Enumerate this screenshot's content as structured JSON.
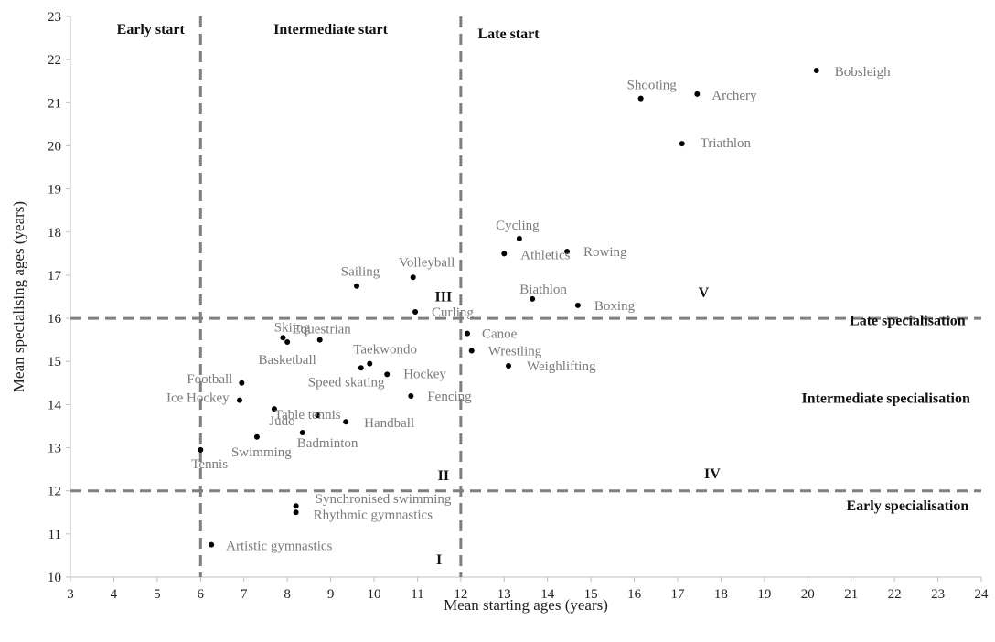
{
  "chart_data": {
    "type": "scatter",
    "xlabel": "Mean starting ages (years)",
    "ylabel": "Mean specialising ages (years)",
    "xlim": [
      3,
      24
    ],
    "ylim": [
      10,
      23
    ],
    "x_ticks": [
      3,
      4,
      5,
      6,
      7,
      8,
      9,
      10,
      11,
      12,
      13,
      14,
      15,
      16,
      17,
      18,
      19,
      20,
      21,
      22,
      23,
      24
    ],
    "y_ticks": [
      10,
      11,
      12,
      13,
      14,
      15,
      16,
      17,
      18,
      19,
      20,
      21,
      22,
      23
    ],
    "grid": false,
    "points": [
      {
        "label": "Bobsleigh",
        "x": 20.2,
        "y": 21.75
      },
      {
        "label": "Shooting",
        "x": 16.15,
        "y": 21.1
      },
      {
        "label": "Archery",
        "x": 17.45,
        "y": 21.2
      },
      {
        "label": "Triathlon",
        "x": 17.1,
        "y": 20.05
      },
      {
        "label": "Cycling",
        "x": 13.35,
        "y": 17.85
      },
      {
        "label": "Athletics",
        "x": 13.0,
        "y": 17.5
      },
      {
        "label": "Rowing",
        "x": 14.45,
        "y": 17.55
      },
      {
        "label": "Biathlon",
        "x": 13.65,
        "y": 16.45
      },
      {
        "label": "Boxing",
        "x": 14.7,
        "y": 16.3
      },
      {
        "label": "Sailing",
        "x": 9.6,
        "y": 16.75
      },
      {
        "label": "Volleyball",
        "x": 10.9,
        "y": 16.95
      },
      {
        "label": "Curling",
        "x": 10.95,
        "y": 16.15
      },
      {
        "label": "Skiing",
        "x": 7.9,
        "y": 15.55
      },
      {
        "label": "Basketball",
        "x": 8.0,
        "y": 15.45
      },
      {
        "label": "Equestrian",
        "x": 8.75,
        "y": 15.5
      },
      {
        "label": "Taekwondo",
        "x": 9.9,
        "y": 14.95
      },
      {
        "label": "Speed skating",
        "x": 9.7,
        "y": 14.85
      },
      {
        "label": "Hockey",
        "x": 10.3,
        "y": 14.7
      },
      {
        "label": "Canoe",
        "x": 12.15,
        "y": 15.65
      },
      {
        "label": "Wrestling",
        "x": 12.25,
        "y": 15.25
      },
      {
        "label": "Weighlifting",
        "x": 13.1,
        "y": 14.9
      },
      {
        "label": "Fencing",
        "x": 10.85,
        "y": 14.2
      },
      {
        "label": "Football",
        "x": 6.95,
        "y": 14.5
      },
      {
        "label": "Ice Hockey",
        "x": 6.9,
        "y": 14.1
      },
      {
        "label": "Table tennis",
        "x": 7.7,
        "y": 13.9
      },
      {
        "label": "Judo",
        "x": 8.7,
        "y": 13.75
      },
      {
        "label": "Handball",
        "x": 9.35,
        "y": 13.6
      },
      {
        "label": "Badminton",
        "x": 8.35,
        "y": 13.35
      },
      {
        "label": "Swimming",
        "x": 7.3,
        "y": 13.25
      },
      {
        "label": "Tennis",
        "x": 6.0,
        "y": 12.95
      },
      {
        "label": "Synchronised swimming",
        "x": 8.2,
        "y": 11.65
      },
      {
        "label": "Rhythmic gymnastics",
        "x": 8.2,
        "y": 11.5
      },
      {
        "label": "Artistic gymnastics",
        "x": 6.25,
        "y": 10.75
      }
    ],
    "reference_lines": {
      "vertical_x": [
        6,
        12
      ],
      "horizontal_y": [
        12,
        16
      ],
      "style": "dashed"
    },
    "zone_labels": [
      {
        "text": "Early start",
        "x": 4.85,
        "y": 22.7
      },
      {
        "text": "Intermediate start",
        "x": 9.0,
        "y": 22.7
      },
      {
        "text": "Late start",
        "x": 13.1,
        "y": 22.6
      },
      {
        "text": "Late specialisation",
        "x": 22.3,
        "y": 15.95
      },
      {
        "text": "Intermediate specialisation",
        "x": 21.8,
        "y": 14.15
      },
      {
        "text": "Early specialisation",
        "x": 22.3,
        "y": 11.65
      }
    ],
    "region_labels": [
      {
        "text": "I",
        "x": 11.5,
        "y": 10.4
      },
      {
        "text": "II",
        "x": 11.6,
        "y": 12.35
      },
      {
        "text": "III",
        "x": 11.6,
        "y": 16.5
      },
      {
        "text": "IV",
        "x": 17.8,
        "y": 12.4
      },
      {
        "text": "V",
        "x": 17.6,
        "y": 16.6
      }
    ]
  }
}
